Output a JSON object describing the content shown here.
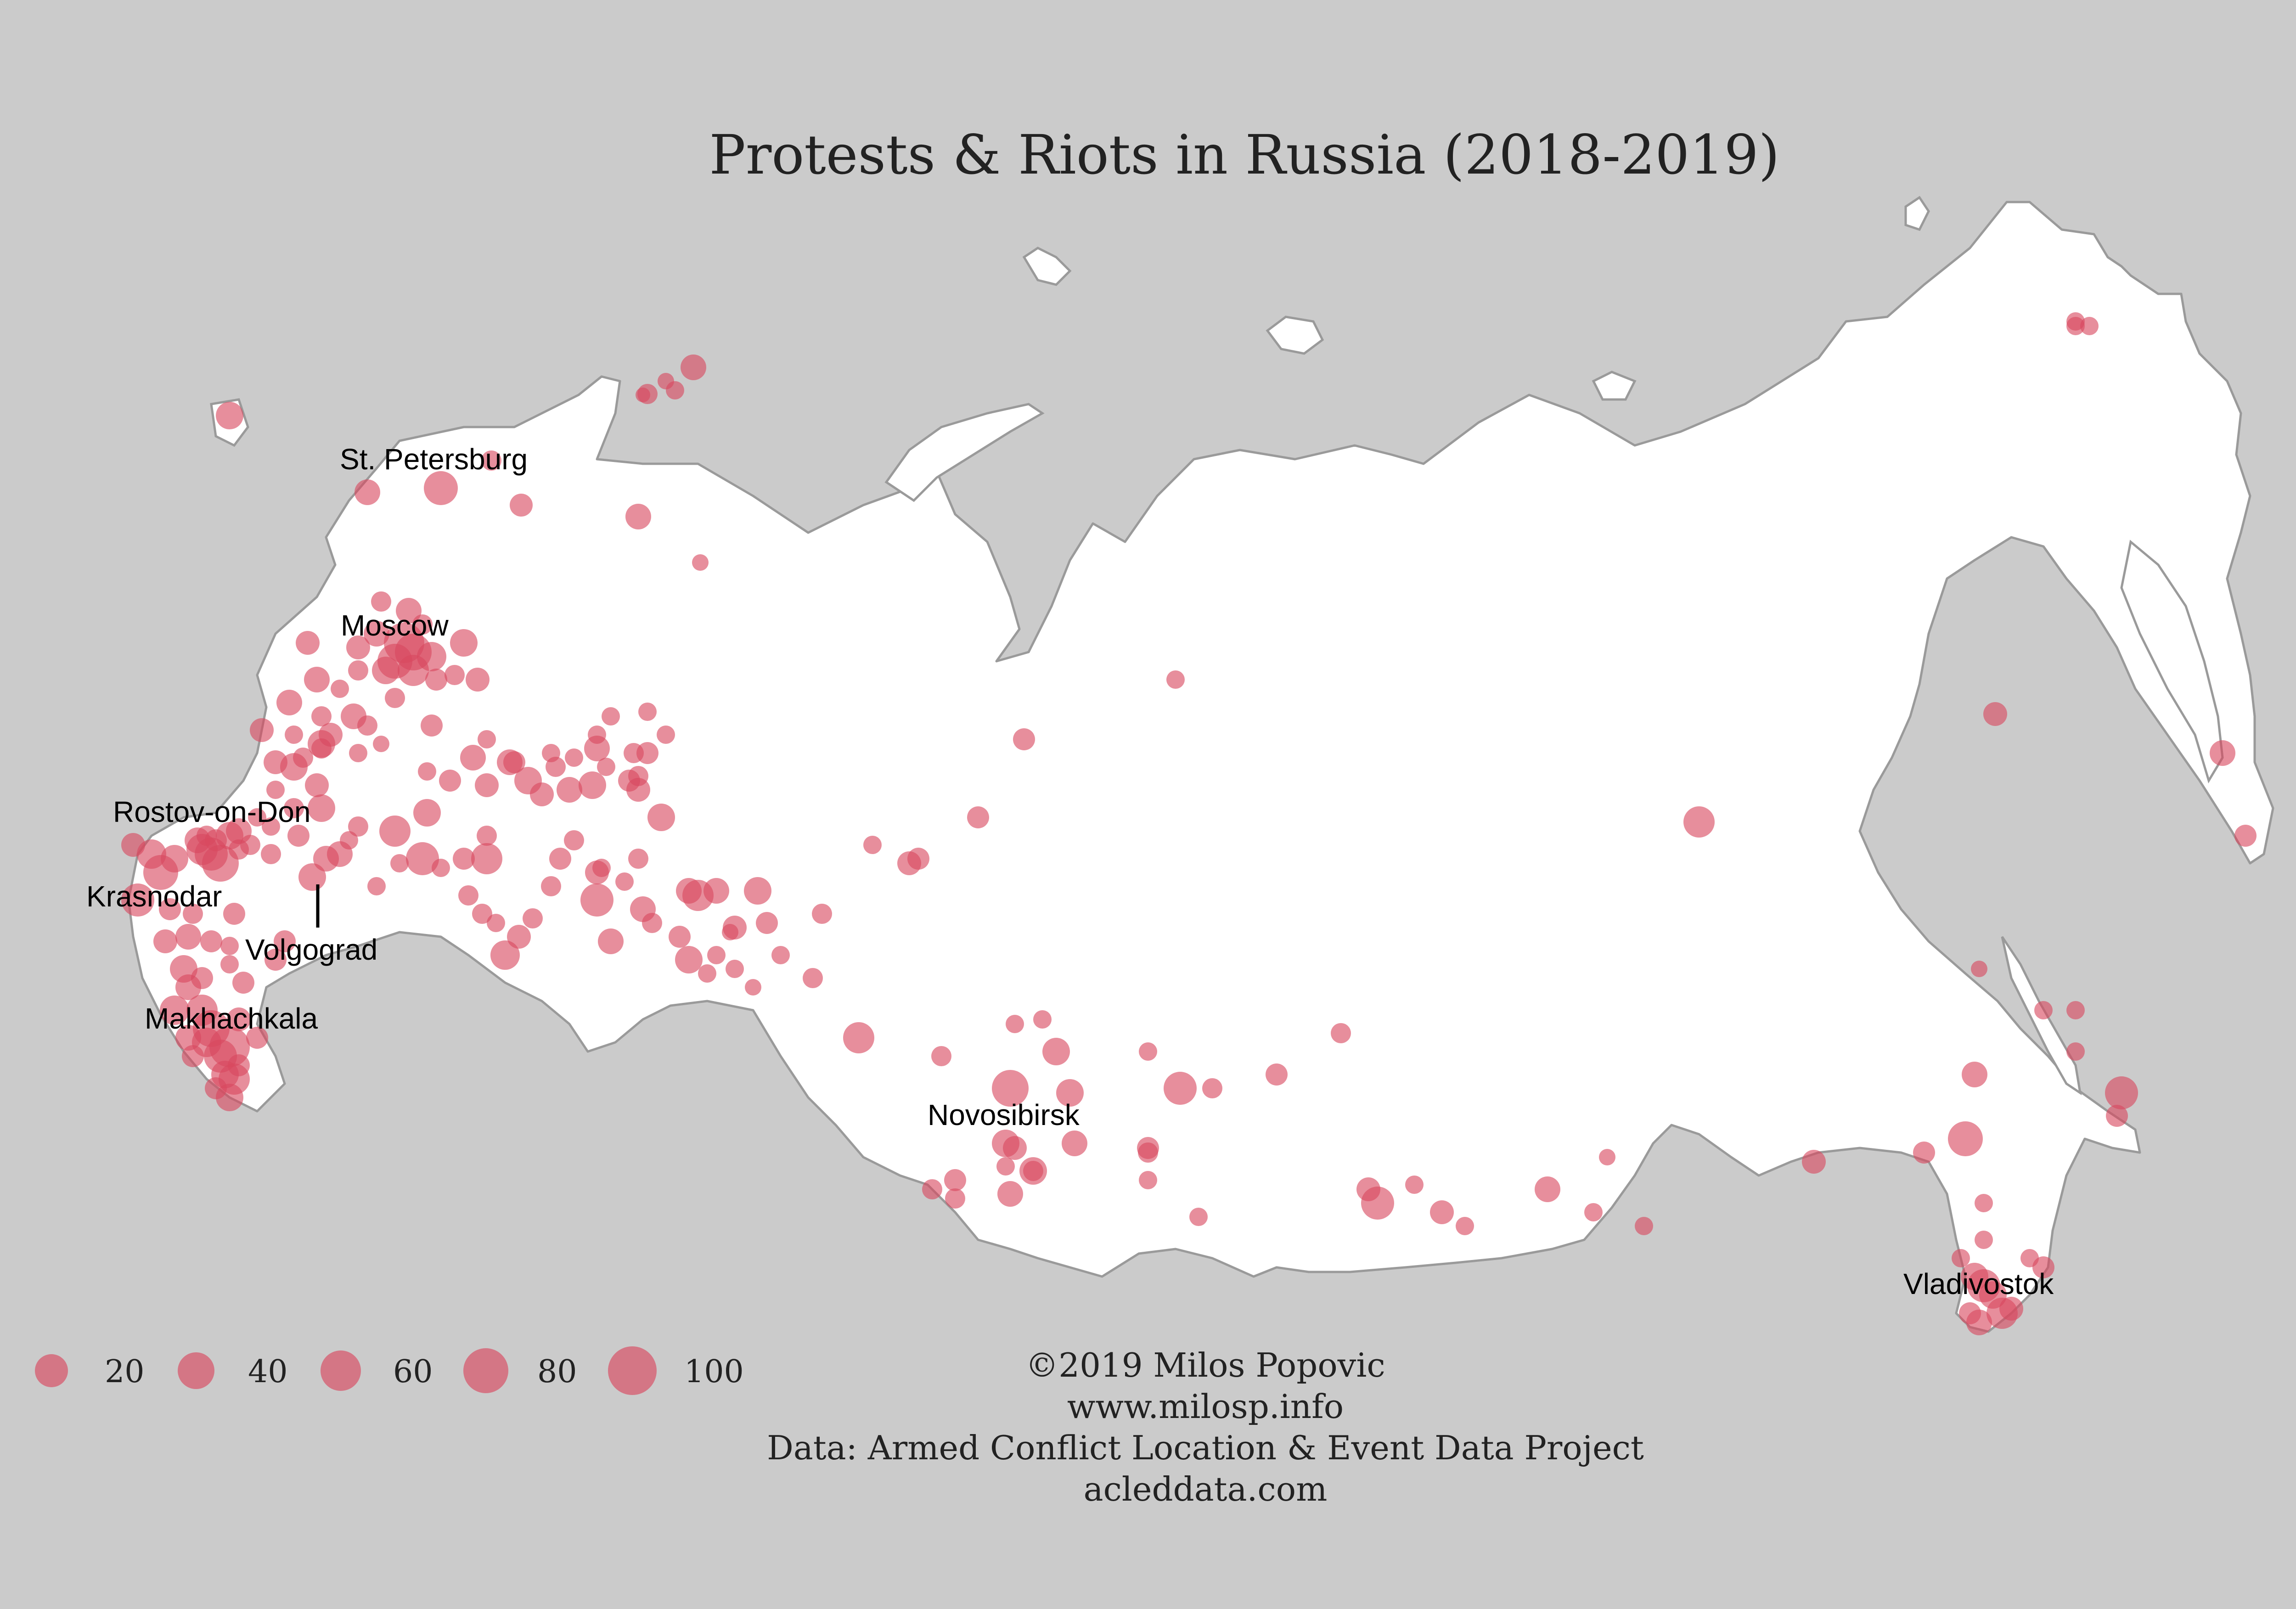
{
  "title": "Protests & Riots in Russia (2018-2019)",
  "colors": {
    "background": "#cbcbcb",
    "land": "#ffffff",
    "border": "#9a9a9a",
    "marker": "#d9485f"
  },
  "map_data": {
    "type": "proportional-symbol-map",
    "region": "Russia",
    "cities": [
      {
        "name": "St. Petersburg"
      },
      {
        "name": "Moscow"
      },
      {
        "name": "Rostov-on-Don"
      },
      {
        "name": "Krasnodar"
      },
      {
        "name": "Volgograd"
      },
      {
        "name": "Makhachkala"
      },
      {
        "name": "Novosibirsk"
      },
      {
        "name": "Vladivostok"
      }
    ],
    "legend": {
      "values": [
        20,
        40,
        60,
        80,
        100
      ]
    }
  },
  "credits": {
    "line1": "©2019 Milos Popovic",
    "line2": "www.milosp.info",
    "line3": "Data: Armed Conflict Location & Event Data Project",
    "line4": "acleddata.com"
  }
}
